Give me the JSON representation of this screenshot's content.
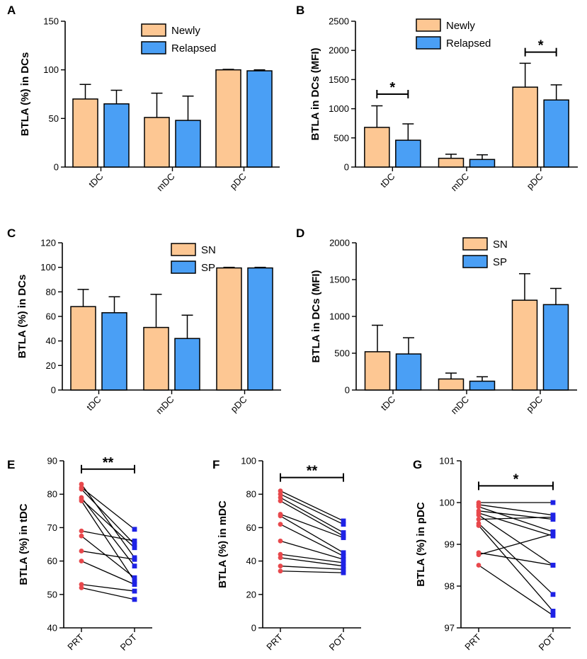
{
  "figure": {
    "colors": {
      "group1": "#FDC793",
      "group2": "#4A9FF5",
      "pre_point": "#E8484C",
      "post_point": "#1E22E6",
      "line": "#000000"
    }
  },
  "chart_data": [
    {
      "panel": "A",
      "type": "bar",
      "ylabel": "BTLA (%) in DCs",
      "xlabel": "",
      "ylim": [
        0,
        150
      ],
      "yticks": [
        0,
        50,
        100,
        150
      ],
      "categories": [
        "tDC",
        "mDC",
        "pDC"
      ],
      "series": [
        {
          "name": "Newly",
          "values": [
            70,
            51,
            100
          ],
          "errors": [
            15,
            25,
            0.5
          ]
        },
        {
          "name": "Relapsed",
          "values": [
            65,
            48,
            99
          ],
          "errors": [
            14,
            25,
            1
          ]
        }
      ],
      "significance": []
    },
    {
      "panel": "B",
      "type": "bar",
      "ylabel": "BTLA in DCs (MFI)",
      "xlabel": "",
      "ylim": [
        0,
        2500
      ],
      "yticks": [
        0,
        500,
        1000,
        1500,
        2000,
        2500
      ],
      "categories": [
        "tDC",
        "mDC",
        "pDC"
      ],
      "series": [
        {
          "name": "Newly",
          "values": [
            680,
            150,
            1370
          ],
          "errors": [
            370,
            70,
            410
          ]
        },
        {
          "name": "Relapsed",
          "values": [
            460,
            130,
            1150
          ],
          "errors": [
            280,
            80,
            260
          ]
        }
      ],
      "significance": [
        {
          "category": "tDC",
          "label": "*",
          "y": 1250
        },
        {
          "category": "pDC",
          "label": "*",
          "y": 1970
        }
      ]
    },
    {
      "panel": "C",
      "type": "bar",
      "ylabel": "BTLA (%) in DCs",
      "xlabel": "",
      "ylim": [
        0,
        120
      ],
      "yticks": [
        0,
        20,
        40,
        60,
        80,
        100,
        120
      ],
      "categories": [
        "tDC",
        "mDC",
        "pDC"
      ],
      "series": [
        {
          "name": "SN",
          "values": [
            68,
            51,
            99.5
          ],
          "errors": [
            14,
            27,
            0.5
          ]
        },
        {
          "name": "SP",
          "values": [
            63,
            42,
            99.5
          ],
          "errors": [
            13,
            19,
            0.5
          ]
        }
      ],
      "significance": []
    },
    {
      "panel": "D",
      "type": "bar",
      "ylabel": "BTLA in DCs (MFI)",
      "xlabel": "",
      "ylim": [
        0,
        2000
      ],
      "yticks": [
        0,
        500,
        1000,
        1500,
        2000
      ],
      "categories": [
        "tDC",
        "mDC",
        "pDC"
      ],
      "series": [
        {
          "name": "SN",
          "values": [
            520,
            150,
            1220
          ],
          "errors": [
            360,
            80,
            360
          ]
        },
        {
          "name": "SP",
          "values": [
            490,
            120,
            1160
          ],
          "errors": [
            220,
            60,
            220
          ]
        }
      ],
      "significance": []
    },
    {
      "panel": "E",
      "type": "paired",
      "ylabel": "BTLA (%) in tDC",
      "ylim": [
        40,
        90
      ],
      "yticks": [
        40,
        50,
        60,
        70,
        80,
        90
      ],
      "categories": [
        "PRT",
        "POT"
      ],
      "pairs": [
        [
          83,
          61
        ],
        [
          82,
          69.5
        ],
        [
          81.5,
          65
        ],
        [
          79,
          58.5
        ],
        [
          78.5,
          64
        ],
        [
          78,
          54
        ],
        [
          69,
          66
        ],
        [
          67.5,
          55
        ],
        [
          63,
          60.5
        ],
        [
          60,
          53
        ],
        [
          53,
          51
        ],
        [
          52,
          48.5
        ]
      ],
      "significance": {
        "label": "**",
        "y": 87.5
      }
    },
    {
      "panel": "F",
      "type": "paired",
      "ylabel": "BTLA (%) in mDC",
      "ylim": [
        0,
        100
      ],
      "yticks": [
        0,
        20,
        40,
        60,
        80,
        100
      ],
      "categories": [
        "PRT",
        "POT"
      ],
      "pairs": [
        [
          82,
          64
        ],
        [
          80,
          62
        ],
        [
          78,
          57
        ],
        [
          76,
          55
        ],
        [
          68,
          54
        ],
        [
          67,
          45
        ],
        [
          62,
          43
        ],
        [
          52,
          41
        ],
        [
          44,
          39
        ],
        [
          42,
          37
        ],
        [
          37,
          35
        ],
        [
          34,
          33
        ]
      ],
      "significance": {
        "label": "**",
        "y": 90
      }
    },
    {
      "panel": "G",
      "type": "paired",
      "ylabel": "BTLA (%) in pDC",
      "ylim": [
        97,
        101
      ],
      "yticks": [
        97,
        98,
        99,
        100,
        101
      ],
      "categories": [
        "PRT",
        "POT"
      ],
      "pairs": [
        [
          100,
          100
        ],
        [
          99.95,
          99.7
        ],
        [
          99.9,
          99.3
        ],
        [
          99.8,
          99.6
        ],
        [
          99.75,
          99.2
        ],
        [
          99.7,
          98.5
        ],
        [
          99.6,
          99.65
        ],
        [
          99.5,
          97.8
        ],
        [
          99.45,
          97.4
        ],
        [
          98.8,
          98.5
        ],
        [
          98.75,
          99.25
        ],
        [
          98.5,
          97.3
        ]
      ],
      "significance": {
        "label": "*",
        "y": 100.4
      }
    }
  ]
}
